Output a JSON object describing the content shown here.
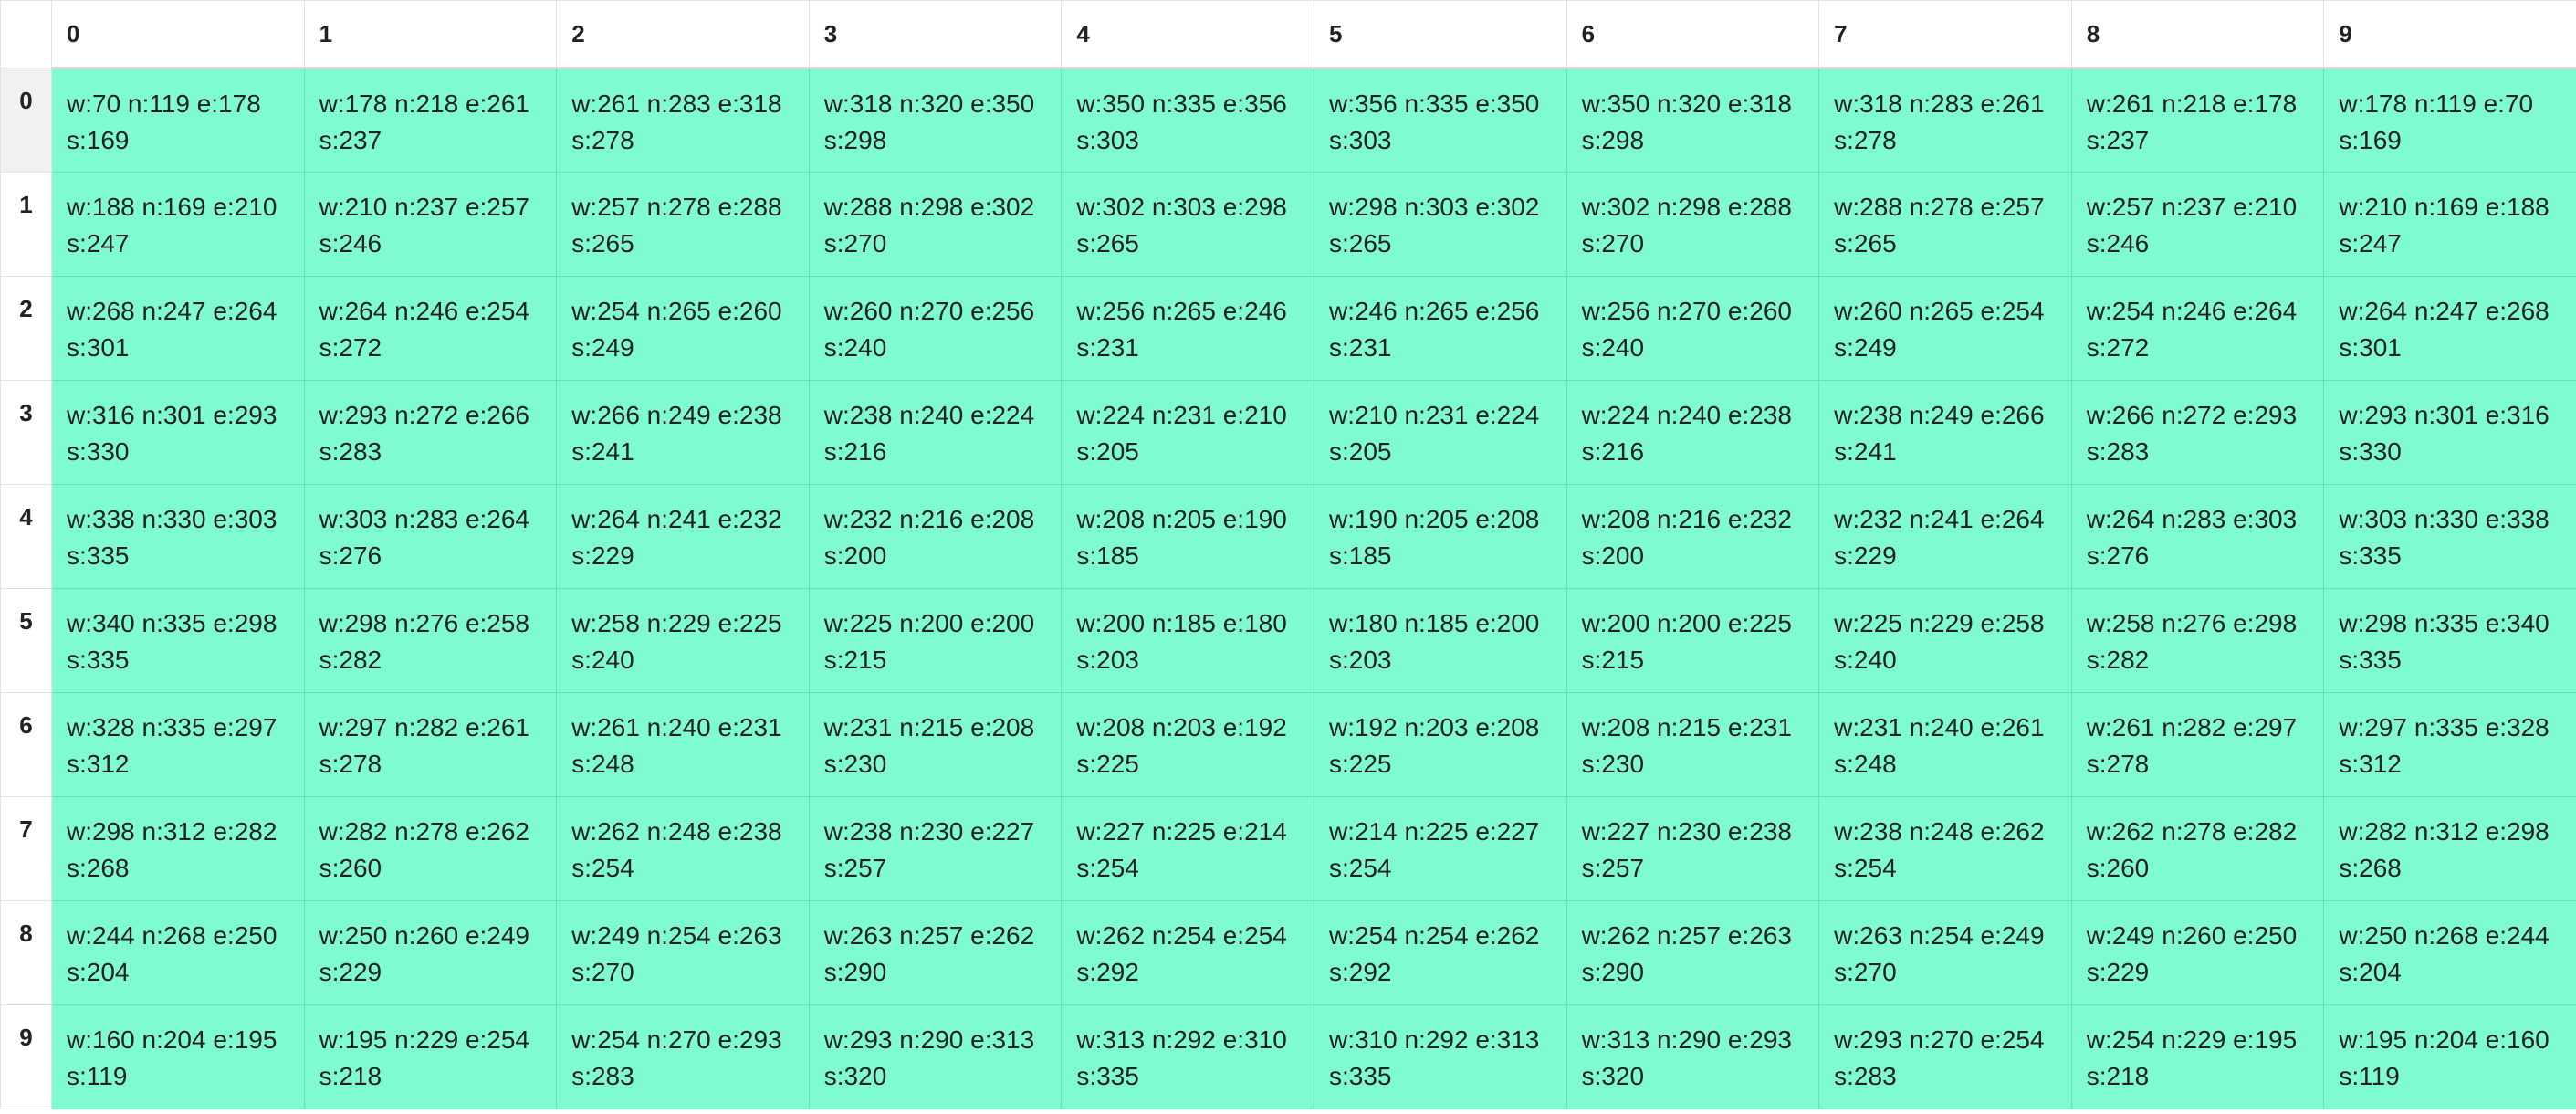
{
  "table": {
    "columns": [
      "0",
      "1",
      "2",
      "3",
      "4",
      "5",
      "6",
      "7",
      "8",
      "9"
    ],
    "rows": [
      {
        "label": "0",
        "cells": [
          {
            "line1": "w:70 n:119 e:178",
            "line2": "s:169"
          },
          {
            "line1": "w:178 n:218 e:261",
            "line2": "s:237"
          },
          {
            "line1": "w:261 n:283 e:318",
            "line2": "s:278"
          },
          {
            "line1": "w:318 n:320 e:350",
            "line2": "s:298"
          },
          {
            "line1": "w:350 n:335 e:356",
            "line2": "s:303"
          },
          {
            "line1": "w:356 n:335 e:350",
            "line2": "s:303"
          },
          {
            "line1": "w:350 n:320 e:318",
            "line2": "s:298"
          },
          {
            "line1": "w:318 n:283 e:261",
            "line2": "s:278"
          },
          {
            "line1": "w:261 n:218 e:178",
            "line2": "s:237"
          },
          {
            "line1": "w:178 n:119 e:70",
            "line2": "s:169"
          }
        ]
      },
      {
        "label": "1",
        "cells": [
          {
            "line1": "w:188 n:169 e:210",
            "line2": "s:247"
          },
          {
            "line1": "w:210 n:237 e:257",
            "line2": "s:246"
          },
          {
            "line1": "w:257 n:278 e:288",
            "line2": "s:265"
          },
          {
            "line1": "w:288 n:298 e:302",
            "line2": "s:270"
          },
          {
            "line1": "w:302 n:303 e:298",
            "line2": "s:265"
          },
          {
            "line1": "w:298 n:303 e:302",
            "line2": "s:265"
          },
          {
            "line1": "w:302 n:298 e:288",
            "line2": "s:270"
          },
          {
            "line1": "w:288 n:278 e:257",
            "line2": "s:265"
          },
          {
            "line1": "w:257 n:237 e:210",
            "line2": "s:246"
          },
          {
            "line1": "w:210 n:169 e:188",
            "line2": "s:247"
          }
        ]
      },
      {
        "label": "2",
        "cells": [
          {
            "line1": "w:268 n:247 e:264",
            "line2": "s:301"
          },
          {
            "line1": "w:264 n:246 e:254",
            "line2": "s:272"
          },
          {
            "line1": "w:254 n:265 e:260",
            "line2": "s:249"
          },
          {
            "line1": "w:260 n:270 e:256",
            "line2": "s:240"
          },
          {
            "line1": "w:256 n:265 e:246",
            "line2": "s:231"
          },
          {
            "line1": "w:246 n:265 e:256",
            "line2": "s:231"
          },
          {
            "line1": "w:256 n:270 e:260",
            "line2": "s:240"
          },
          {
            "line1": "w:260 n:265 e:254",
            "line2": "s:249"
          },
          {
            "line1": "w:254 n:246 e:264",
            "line2": "s:272"
          },
          {
            "line1": "w:264 n:247 e:268",
            "line2": "s:301"
          }
        ]
      },
      {
        "label": "3",
        "cells": [
          {
            "line1": "w:316 n:301 e:293",
            "line2": "s:330"
          },
          {
            "line1": "w:293 n:272 e:266",
            "line2": "s:283"
          },
          {
            "line1": "w:266 n:249 e:238",
            "line2": "s:241"
          },
          {
            "line1": "w:238 n:240 e:224",
            "line2": "s:216"
          },
          {
            "line1": "w:224 n:231 e:210",
            "line2": "s:205"
          },
          {
            "line1": "w:210 n:231 e:224",
            "line2": "s:205"
          },
          {
            "line1": "w:224 n:240 e:238",
            "line2": "s:216"
          },
          {
            "line1": "w:238 n:249 e:266",
            "line2": "s:241"
          },
          {
            "line1": "w:266 n:272 e:293",
            "line2": "s:283"
          },
          {
            "line1": "w:293 n:301 e:316",
            "line2": "s:330"
          }
        ]
      },
      {
        "label": "4",
        "cells": [
          {
            "line1": "w:338 n:330 e:303",
            "line2": "s:335"
          },
          {
            "line1": "w:303 n:283 e:264",
            "line2": "s:276"
          },
          {
            "line1": "w:264 n:241 e:232",
            "line2": "s:229"
          },
          {
            "line1": "w:232 n:216 e:208",
            "line2": "s:200"
          },
          {
            "line1": "w:208 n:205 e:190",
            "line2": "s:185"
          },
          {
            "line1": "w:190 n:205 e:208",
            "line2": "s:185"
          },
          {
            "line1": "w:208 n:216 e:232",
            "line2": "s:200"
          },
          {
            "line1": "w:232 n:241 e:264",
            "line2": "s:229"
          },
          {
            "line1": "w:264 n:283 e:303",
            "line2": "s:276"
          },
          {
            "line1": "w:303 n:330 e:338",
            "line2": "s:335"
          }
        ]
      },
      {
        "label": "5",
        "cells": [
          {
            "line1": "w:340 n:335 e:298",
            "line2": "s:335"
          },
          {
            "line1": "w:298 n:276 e:258",
            "line2": "s:282"
          },
          {
            "line1": "w:258 n:229 e:225",
            "line2": "s:240"
          },
          {
            "line1": "w:225 n:200 e:200",
            "line2": "s:215"
          },
          {
            "line1": "w:200 n:185 e:180",
            "line2": "s:203"
          },
          {
            "line1": "w:180 n:185 e:200",
            "line2": "s:203"
          },
          {
            "line1": "w:200 n:200 e:225",
            "line2": "s:215"
          },
          {
            "line1": "w:225 n:229 e:258",
            "line2": "s:240"
          },
          {
            "line1": "w:258 n:276 e:298",
            "line2": "s:282"
          },
          {
            "line1": "w:298 n:335 e:340",
            "line2": "s:335"
          }
        ]
      },
      {
        "label": "6",
        "cells": [
          {
            "line1": "w:328 n:335 e:297",
            "line2": "s:312"
          },
          {
            "line1": "w:297 n:282 e:261",
            "line2": "s:278"
          },
          {
            "line1": "w:261 n:240 e:231",
            "line2": "s:248"
          },
          {
            "line1": "w:231 n:215 e:208",
            "line2": "s:230"
          },
          {
            "line1": "w:208 n:203 e:192",
            "line2": "s:225"
          },
          {
            "line1": "w:192 n:203 e:208",
            "line2": "s:225"
          },
          {
            "line1": "w:208 n:215 e:231",
            "line2": "s:230"
          },
          {
            "line1": "w:231 n:240 e:261",
            "line2": "s:248"
          },
          {
            "line1": "w:261 n:282 e:297",
            "line2": "s:278"
          },
          {
            "line1": "w:297 n:335 e:328",
            "line2": "s:312"
          }
        ]
      },
      {
        "label": "7",
        "cells": [
          {
            "line1": "w:298 n:312 e:282",
            "line2": "s:268"
          },
          {
            "line1": "w:282 n:278 e:262",
            "line2": "s:260"
          },
          {
            "line1": "w:262 n:248 e:238",
            "line2": "s:254"
          },
          {
            "line1": "w:238 n:230 e:227",
            "line2": "s:257"
          },
          {
            "line1": "w:227 n:225 e:214",
            "line2": "s:254"
          },
          {
            "line1": "w:214 n:225 e:227",
            "line2": "s:254"
          },
          {
            "line1": "w:227 n:230 e:238",
            "line2": "s:257"
          },
          {
            "line1": "w:238 n:248 e:262",
            "line2": "s:254"
          },
          {
            "line1": "w:262 n:278 e:282",
            "line2": "s:260"
          },
          {
            "line1": "w:282 n:312 e:298",
            "line2": "s:268"
          }
        ]
      },
      {
        "label": "8",
        "cells": [
          {
            "line1": "w:244 n:268 e:250",
            "line2": "s:204"
          },
          {
            "line1": "w:250 n:260 e:249",
            "line2": "s:229"
          },
          {
            "line1": "w:249 n:254 e:263",
            "line2": "s:270"
          },
          {
            "line1": "w:263 n:257 e:262",
            "line2": "s:290"
          },
          {
            "line1": "w:262 n:254 e:254",
            "line2": "s:292"
          },
          {
            "line1": "w:254 n:254 e:262",
            "line2": "s:292"
          },
          {
            "line1": "w:262 n:257 e:263",
            "line2": "s:290"
          },
          {
            "line1": "w:263 n:254 e:249",
            "line2": "s:270"
          },
          {
            "line1": "w:249 n:260 e:250",
            "line2": "s:229"
          },
          {
            "line1": "w:250 n:268 e:244",
            "line2": "s:204"
          }
        ]
      },
      {
        "label": "9",
        "cells": [
          {
            "line1": "w:160 n:204 e:195",
            "line2": "s:119"
          },
          {
            "line1": "w:195 n:229 e:254",
            "line2": "s:218"
          },
          {
            "line1": "w:254 n:270 e:293",
            "line2": "s:283"
          },
          {
            "line1": "w:293 n:290 e:313",
            "line2": "s:320"
          },
          {
            "line1": "w:313 n:292 e:310",
            "line2": "s:335"
          },
          {
            "line1": "w:310 n:292 e:313",
            "line2": "s:335"
          },
          {
            "line1": "w:313 n:290 e:293",
            "line2": "s:320"
          },
          {
            "line1": "w:293 n:270 e:254",
            "line2": "s:283"
          },
          {
            "line1": "w:254 n:229 e:195",
            "line2": "s:218"
          },
          {
            "line1": "w:195 n:204 e:160",
            "line2": "s:119"
          }
        ]
      }
    ],
    "colors": {
      "cell_background": "#7ffccf",
      "header_background": "#ffffff",
      "first_row_header_background": "#f1f1f1"
    }
  }
}
